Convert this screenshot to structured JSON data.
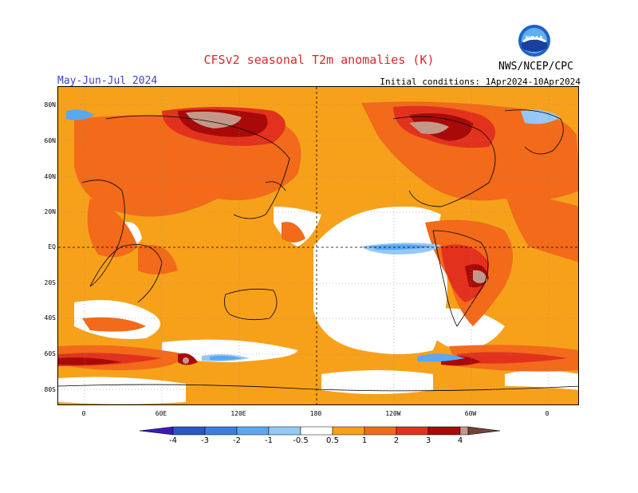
{
  "title": "CFSv2 seasonal T2m anomalies (K)",
  "period": "May-Jun-Jul 2024",
  "initial_conditions": "Initial conditions: 1Apr2024-10Apr2024",
  "org": "NWS/NCEP/CPC",
  "logo_text": "NOAA",
  "lat_labels": [
    "80N",
    "60N",
    "40N",
    "20N",
    "EQ",
    "20S",
    "40S",
    "60S",
    "80S"
  ],
  "lon_labels": [
    "0",
    "60E",
    "120E",
    "180",
    "120W",
    "60W",
    "0"
  ],
  "colorbar": {
    "labels": [
      "-4",
      "-3",
      "-2",
      "-1",
      "-0.5",
      "0.5",
      "1",
      "2",
      "3",
      "4"
    ],
    "colors": [
      "#3a1ab8",
      "#2a56c8",
      "#3c7ee0",
      "#5aa8f0",
      "#96c8f6",
      "#ffffff",
      "#f7a11b",
      "#f26a1a",
      "#e2321e",
      "#a80a0a",
      "#c49888",
      "#6e4438"
    ]
  }
}
